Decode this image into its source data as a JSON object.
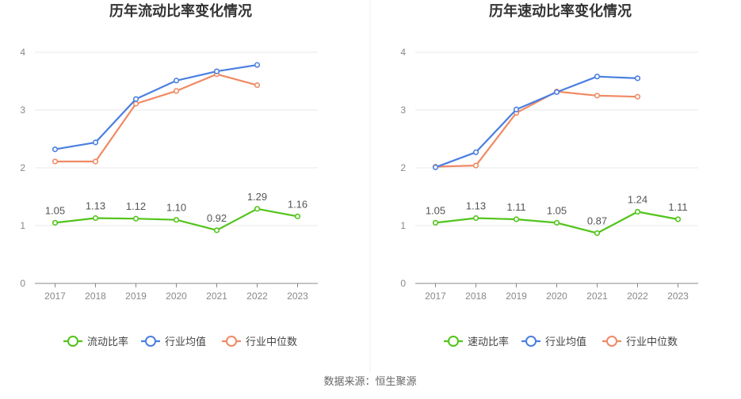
{
  "source": "数据来源：恒生聚源",
  "chart_data": [
    {
      "type": "line",
      "title": "历年流动比率变化情况",
      "categories": [
        "2017",
        "2018",
        "2019",
        "2020",
        "2021",
        "2022",
        "2023"
      ],
      "ylim": [
        0,
        4
      ],
      "yticks": [
        0,
        1,
        2,
        3,
        4
      ],
      "grid": true,
      "legend_position": "bottom",
      "series": [
        {
          "name": "流动比率",
          "color": "#52c41a",
          "values": [
            1.05,
            1.13,
            1.12,
            1.1,
            0.92,
            1.29,
            1.16
          ],
          "labels": [
            "1.05",
            "1.13",
            "1.12",
            "1.10",
            "0.92",
            "1.29",
            "1.16"
          ]
        },
        {
          "name": "行业均值",
          "color": "#4a7fe0",
          "values": [
            2.32,
            2.44,
            3.19,
            3.51,
            3.67,
            3.78,
            null
          ]
        },
        {
          "name": "行业中位数",
          "color": "#f08a64",
          "values": [
            2.11,
            2.11,
            3.11,
            3.33,
            3.62,
            3.43,
            null
          ]
        }
      ]
    },
    {
      "type": "line",
      "title": "历年速动比率变化情况",
      "categories": [
        "2017",
        "2018",
        "2019",
        "2020",
        "2021",
        "2022",
        "2023"
      ],
      "ylim": [
        0,
        4
      ],
      "yticks": [
        0,
        1,
        2,
        3,
        4
      ],
      "grid": true,
      "legend_position": "bottom",
      "series": [
        {
          "name": "速动比率",
          "color": "#52c41a",
          "values": [
            1.05,
            1.13,
            1.11,
            1.05,
            0.87,
            1.24,
            1.11
          ],
          "labels": [
            "1.05",
            "1.13",
            "1.11",
            "1.05",
            "0.87",
            "1.24",
            "1.11"
          ]
        },
        {
          "name": "行业均值",
          "color": "#4a7fe0",
          "values": [
            2.01,
            2.27,
            3.01,
            3.31,
            3.58,
            3.55,
            null
          ]
        },
        {
          "name": "行业中位数",
          "color": "#f08a64",
          "values": [
            2.02,
            2.04,
            2.95,
            3.32,
            3.25,
            3.23,
            null
          ]
        }
      ]
    }
  ]
}
